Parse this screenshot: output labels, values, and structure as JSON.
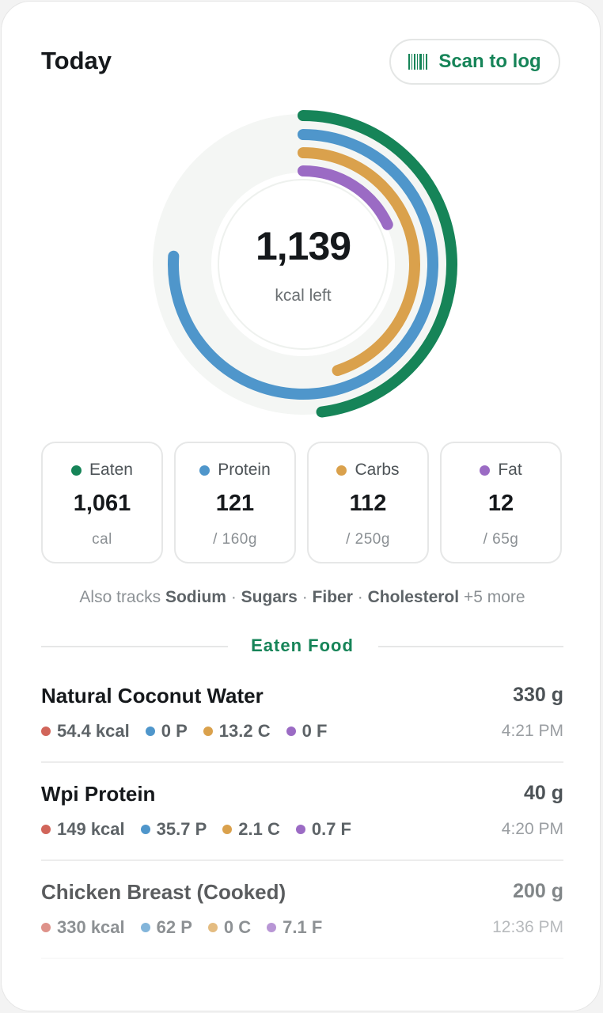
{
  "header": {
    "title": "Today",
    "scan_button_label": "Scan to log",
    "scan_icon": "barcode-icon"
  },
  "summary": {
    "kcal_left": "1,139",
    "kcal_left_label": "kcal left",
    "rings": [
      {
        "name": "Eaten",
        "progress": 0.48,
        "color": "#168458"
      },
      {
        "name": "Protein",
        "progress": 0.76,
        "color": "#4f96cb"
      },
      {
        "name": "Carbs",
        "progress": 0.45,
        "color": "#daa14c"
      },
      {
        "name": "Fat",
        "progress": 0.18,
        "color": "#9b6bc4"
      }
    ]
  },
  "stats": [
    {
      "label": "Eaten",
      "value": "1,061",
      "unit": "cal",
      "color": "#168458"
    },
    {
      "label": "Protein",
      "value": "121",
      "unit": "/ 160g",
      "color": "#4f96cb"
    },
    {
      "label": "Carbs",
      "value": "112",
      "unit": "/ 250g",
      "color": "#daa14c"
    },
    {
      "label": "Fat",
      "value": "12",
      "unit": "/ 65g",
      "color": "#9b6bc4"
    }
  ],
  "tracks": {
    "prefix": "Also tracks",
    "items": [
      "Sodium",
      "Sugars",
      "Fiber",
      "Cholesterol"
    ],
    "separator": "·",
    "more": "+5 more"
  },
  "section_title": "Eaten Food",
  "macro_colors": {
    "kcal": "#d1655a",
    "protein": "#4f96cb",
    "carbs": "#daa14c",
    "fat": "#9b6bc4"
  },
  "foods": [
    {
      "name": "Natural Coconut Water",
      "weight": "330 g",
      "kcal": "54.4 kcal",
      "protein": "0 P",
      "carbs": "13.2 C",
      "fat": "0 F",
      "time": "4:21 PM"
    },
    {
      "name": "Wpi Protein",
      "weight": "40 g",
      "kcal": "149 kcal",
      "protein": "35.7 P",
      "carbs": "2.1 C",
      "fat": "0.7 F",
      "time": "4:20 PM"
    },
    {
      "name": "Chicken Breast (Cooked)",
      "weight": "200 g",
      "kcal": "330 kcal",
      "protein": "62 P",
      "carbs": "0 C",
      "fat": "7.1 F",
      "time": "12:36 PM"
    }
  ]
}
